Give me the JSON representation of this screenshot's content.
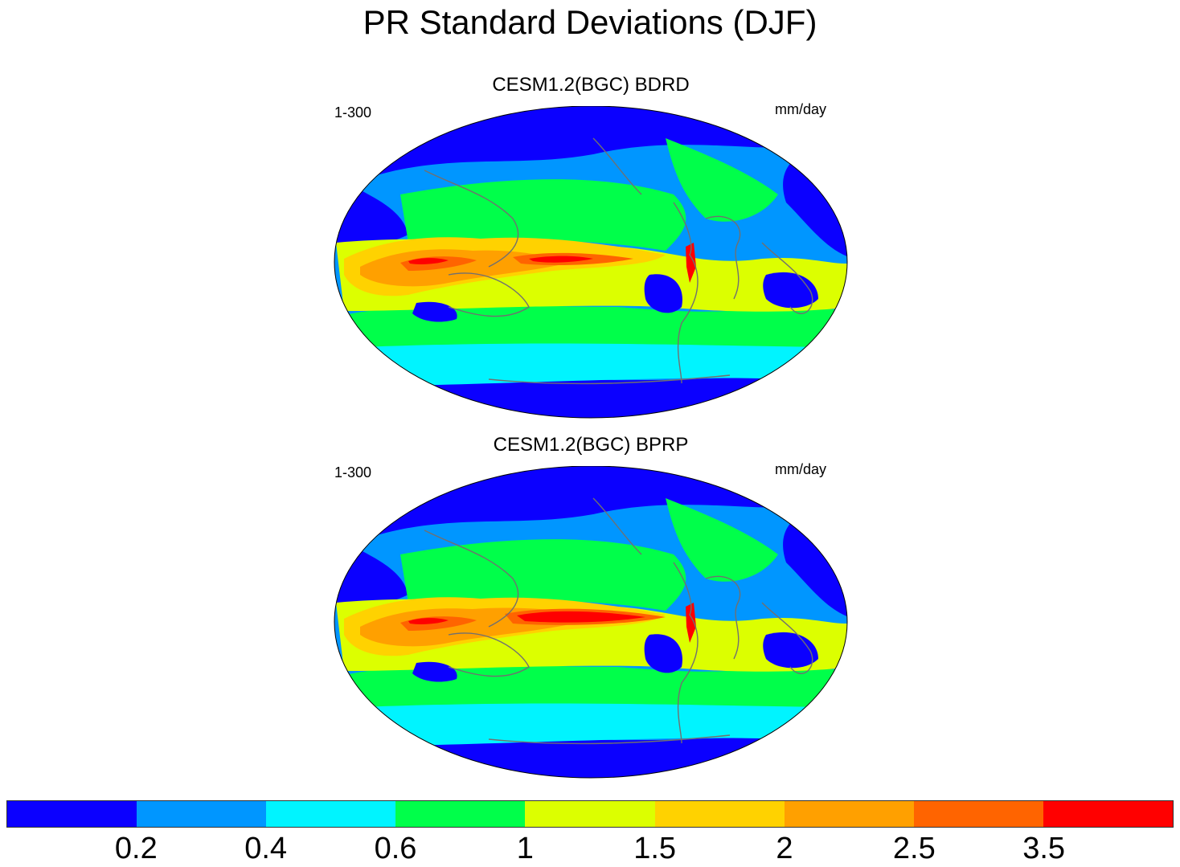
{
  "title": "PR Standard Deviations (DJF)",
  "panels": [
    {
      "title": "CESM1.2(BGC) BDRD",
      "left_note": "1-300",
      "right_note": "mm/day"
    },
    {
      "title": "CESM1.2(BGC) BPRP",
      "left_note": "1-300",
      "right_note": "mm/day"
    }
  ],
  "colorbar": {
    "colors": [
      "#0b00ff",
      "#0096ff",
      "#00f4ff",
      "#00ff4a",
      "#dcff00",
      "#ffd200",
      "#ffa000",
      "#ff6400",
      "#ff0000"
    ],
    "labels": [
      "0.2",
      "0.4",
      "0.6",
      "1",
      "1.5",
      "2",
      "2.5",
      "3.5"
    ]
  }
}
